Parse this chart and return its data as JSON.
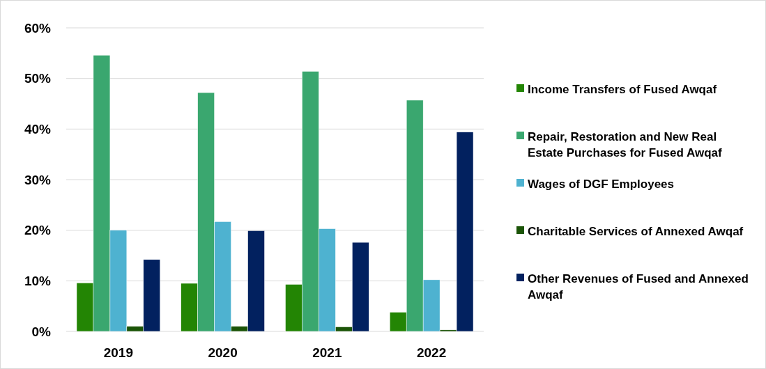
{
  "chart_data": {
    "type": "bar",
    "categories": [
      "2019",
      "2020",
      "2021",
      "2022"
    ],
    "series": [
      {
        "name": "Income Transfers of Fused Awqaf",
        "color": "#238504",
        "values": [
          9.6,
          9.5,
          9.3,
          3.8
        ]
      },
      {
        "name": "Repair, Restoration and New Real Estate Purchases for Fused Awqaf",
        "color": "#3aa76f",
        "values": [
          54.6,
          47.2,
          51.4,
          45.7
        ]
      },
      {
        "name": "Wages of DGF Employees",
        "color": "#4eb2d0",
        "values": [
          20.0,
          21.7,
          20.3,
          10.2
        ]
      },
      {
        "name": "Charitable Services of Annexed Awqaf",
        "color": "#1b5407",
        "values": [
          1.0,
          1.0,
          0.9,
          0.3
        ]
      },
      {
        "name": "Other Revenues of Fused and Annexed Awqaf",
        "color": "#02215f",
        "values": [
          14.2,
          19.9,
          17.6,
          39.4
        ]
      }
    ],
    "ylim": [
      0,
      60
    ],
    "yticks": [
      {
        "value": 0,
        "label": "0%"
      },
      {
        "value": 10,
        "label": "10%"
      },
      {
        "value": 20,
        "label": "20%"
      },
      {
        "value": 30,
        "label": "30%"
      },
      {
        "value": 40,
        "label": "40%"
      },
      {
        "value": 50,
        "label": "50%"
      },
      {
        "value": 60,
        "label": "60%"
      }
    ],
    "grid": "y",
    "legend": "right"
  }
}
